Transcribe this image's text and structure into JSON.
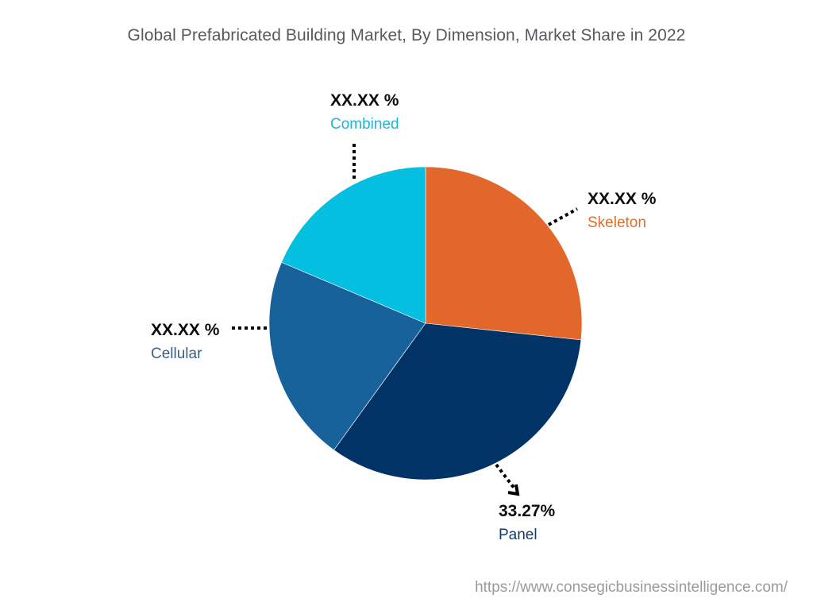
{
  "chart_data": {
    "type": "pie",
    "title": "Global Prefabricated Building Market, By Dimension, Market Share in 2022",
    "start_angle_deg": 0,
    "direction": "clockwise",
    "categories": [
      "Skeleton",
      "Panel",
      "Cellular",
      "Combined"
    ],
    "values": [
      26.7,
      33.27,
      21.4,
      18.63
    ],
    "value_labels": [
      "XX.XX %",
      "33.27%",
      "XX.XX %",
      "XX.XX %"
    ],
    "colors": [
      "#e2672b",
      "#023366",
      "#17629b",
      "#04bfe0"
    ],
    "legend": "none (inline callout labels)"
  },
  "title": "Global Prefabricated Building Market, By Dimension, Market Share in 2022",
  "labels": {
    "combined": {
      "value": "XX.XX %",
      "name": "Combined",
      "color": "#22b5cf"
    },
    "skeleton": {
      "value": "XX.XX %",
      "name": "Skeleton",
      "color": "#d9702f"
    },
    "cellular": {
      "value": "XX.XX %",
      "name": "Cellular",
      "color": "#3a5f86"
    },
    "panel": {
      "value": "33.27%",
      "name": "Panel",
      "color": "#0f3c69"
    }
  },
  "source_url": "https://www.consegicbusinessintelligence.com/"
}
